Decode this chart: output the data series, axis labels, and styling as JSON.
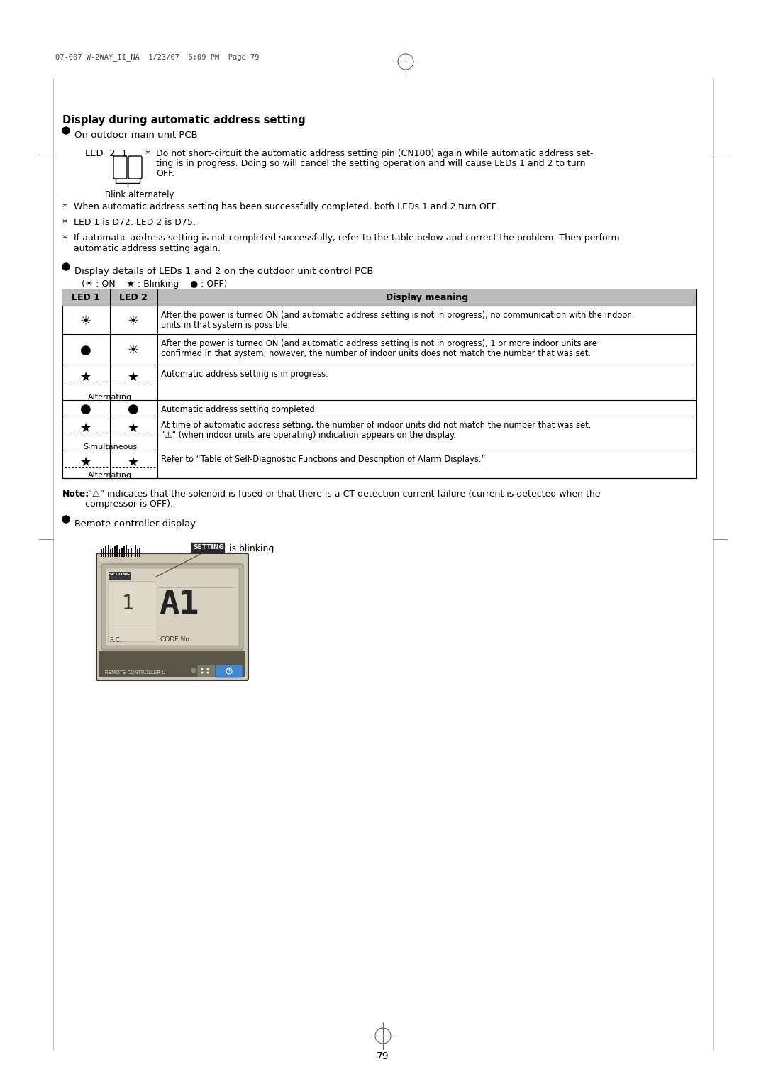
{
  "page_header": "07-007 W-2WAY_II_NA  1/23/07  6:09 PM  Page 79",
  "title": "Display during automatic address setting",
  "bullet1": "On outdoor main unit PCB",
  "led_label": "LED  2  1",
  "blink_text": "Blink alternately",
  "cn100_line1": "Do not short-circuit the automatic address setting pin (CN100) again while automatic address set-",
  "cn100_line2": "ting is in progress. Doing so will cancel the setting operation and will cause LEDs 1 and 2 to turn",
  "cn100_line3": "OFF.",
  "note1": "When automatic address setting has been successfully completed, both LEDs 1 and 2 turn OFF.",
  "note2": "LED 1 is D72. LED 2 is D75.",
  "note3a": "If automatic address setting is not completed successfully, refer to the table below and correct the problem. Then perform",
  "note3b": "automatic address setting again.",
  "bullet2": "Display details of LEDs 1 and 2 on the outdoor unit control PCB",
  "legend": "(☀ : ON    ★ : Blinking    ● : OFF)",
  "col_headers": [
    "LED 1",
    "LED 2",
    "Display meaning"
  ],
  "rows": [
    {
      "led1": "☀",
      "led2": "☀",
      "sub": null,
      "lines": [
        "After the power is turned ON (and automatic address setting is not in progress), no communication with the indoor",
        "units in that system is possible."
      ]
    },
    {
      "led1": "●",
      "led2": "☀",
      "sub": null,
      "lines": [
        "After the power is turned ON (and automatic address setting is not in progress), 1 or more indoor units are",
        "confirmed in that system; however, the number of indoor units does not match the number that was set."
      ]
    },
    {
      "led1": "★",
      "led2": "★",
      "sub": "Alternating",
      "lines": [
        "Automatic address setting is in progress."
      ]
    },
    {
      "led1": "●",
      "led2": "●",
      "sub": null,
      "lines": [
        "Automatic address setting completed."
      ]
    },
    {
      "led1": "★",
      "led2": "★",
      "sub": "Simultaneous",
      "lines": [
        "At time of automatic address setting, the number of indoor units did not match the number that was set.",
        "\"⚠\" (when indoor units are operating) indication appears on the display."
      ]
    },
    {
      "led1": "★",
      "led2": "★",
      "sub": "Alternating",
      "lines": [
        "Refer to “Table of Self-Diagnostic Functions and Description of Alarm Displays.”"
      ]
    }
  ],
  "note_bold": "Note:",
  "note_rest": " \"⚠\" indicates that the solenoid is fused or that there is a CT detection current failure (current is detected when the",
  "note_cont": "compressor is OFF).",
  "bullet3": "Remote controller display",
  "setting_label": "SETTING",
  "setting_rest": " is blinking",
  "page_number": "79",
  "bg_color": "#ffffff"
}
